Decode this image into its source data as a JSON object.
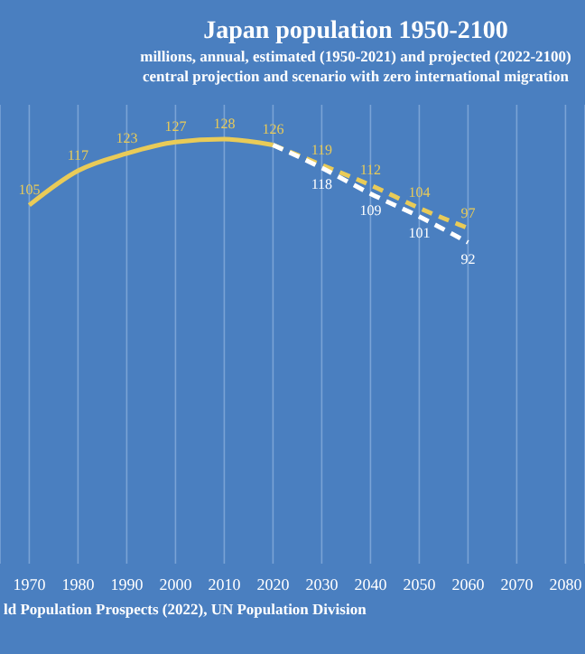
{
  "chart_data": {
    "type": "line",
    "title": "Japan population 1950-2100",
    "subtitle": "millions, annual, estimated (1950-2021) and projected (2022-2100)\ncentral projection and scenario with zero international migration",
    "annotations": [
      "ld Population Prospects (2022), UN Population Division"
    ],
    "xlim": [
      1964,
      2084
    ],
    "xticks": [
      1970,
      1980,
      1990,
      2000,
      2010,
      2020,
      2030,
      2040,
      2050,
      2060,
      2070,
      2080
    ],
    "ylim": [
      -20,
      140
    ],
    "tick_labels": "x",
    "grid": "x",
    "marker": "none",
    "series": [
      {
        "color": "#e9cb58",
        "line_style": "solid",
        "x": [
          1970,
          1980,
          1990,
          2000,
          2010,
          2020
        ],
        "values": [
          105,
          117,
          123,
          127,
          128,
          126
        ],
        "value_labels": [
          "105",
          "117",
          "123",
          "127",
          "128",
          "126"
        ]
      },
      {
        "color": "#e9cb58",
        "line_style": "dashed",
        "x": [
          2020,
          2030,
          2040,
          2050,
          2060
        ],
        "values": [
          126,
          119,
          112,
          104,
          97
        ],
        "value_labels": [
          null,
          "119",
          "112",
          "104",
          "97"
        ]
      },
      {
        "color": "#ffffff",
        "line_style": "dashed",
        "x": [
          2020,
          2030,
          2040,
          2050,
          2060
        ],
        "values": [
          126,
          118,
          109,
          101,
          92
        ],
        "value_labels": [
          null,
          "118",
          "109",
          "101",
          "92"
        ]
      }
    ]
  }
}
